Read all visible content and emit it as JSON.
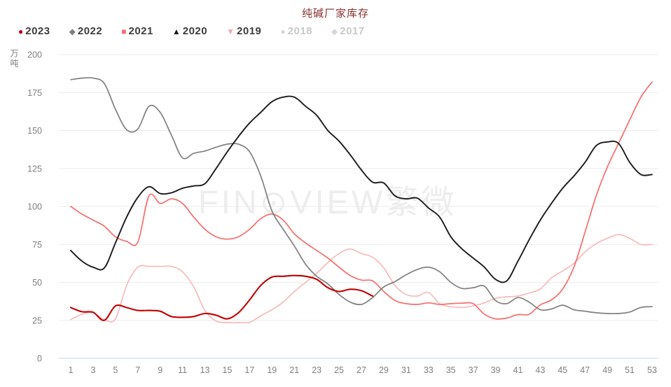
{
  "title": "纯碱厂家库存",
  "title_color": "#8b3030",
  "watermark": "FIN⊙VIEW繁微",
  "y_axis_unit": "万吨",
  "legend": {
    "active_text_color": "#3d3d3d",
    "inactive_text_color": "#c9c9c9",
    "items": [
      {
        "label": "2023",
        "marker": "circle",
        "color": "#c00000",
        "active": true
      },
      {
        "label": "2022",
        "marker": "diamond",
        "color": "#7f7f7f",
        "active": true
      },
      {
        "label": "2021",
        "marker": "square",
        "color": "#f96c6c",
        "active": true
      },
      {
        "label": "2020",
        "marker": "triangle-up",
        "color": "#1a1a1a",
        "active": true
      },
      {
        "label": "2019",
        "marker": "triangle-down",
        "color": "#f5a8a8",
        "active": true
      },
      {
        "label": "2018",
        "marker": "circle",
        "color": "#d6d6d6",
        "active": false
      },
      {
        "label": "2017",
        "marker": "diamond",
        "color": "#d6d6d6",
        "active": false
      }
    ]
  },
  "chart_data": {
    "type": "line",
    "xlabel": "",
    "ylabel": "万吨",
    "ylim": [
      0,
      200
    ],
    "y_ticks": [
      0,
      25,
      50,
      75,
      100,
      125,
      150,
      175,
      200
    ],
    "x_ticks": [
      1,
      3,
      5,
      7,
      9,
      11,
      13,
      15,
      17,
      19,
      21,
      23,
      25,
      27,
      29,
      31,
      33,
      35,
      37,
      39,
      41,
      43,
      45,
      47,
      49,
      51,
      53
    ],
    "x_weeks": 53,
    "grid_color": "#ebebeb",
    "zero_axis_color": "#c9d6ea",
    "tick_label_color": "#7f7f7f",
    "legend_position": "top-left",
    "series": [
      {
        "name": "2019",
        "color": "#f7baba",
        "width": 1.7,
        "values": [
          25.5,
          29,
          30,
          25.5,
          26,
          48,
          60,
          60.5,
          60.5,
          60.5,
          57,
          47,
          31.5,
          24.5,
          23.5,
          23.5,
          23.7,
          28,
          32,
          37,
          44,
          50,
          56,
          63,
          69,
          72,
          69,
          66.5,
          59.5,
          48,
          42,
          41,
          43.3,
          36,
          34,
          33.5,
          34.5,
          36.5,
          39.5,
          40.5,
          41,
          43,
          45.6,
          53,
          57.5,
          62.5,
          70,
          75.5,
          79,
          81.5,
          79,
          75,
          75
        ]
      },
      {
        "name": "2021",
        "color": "#f96c6c",
        "width": 1.7,
        "values": [
          100,
          95,
          91,
          87,
          80,
          77,
          76.5,
          107,
          102,
          105,
          102,
          93,
          85,
          80,
          78.5,
          80,
          85,
          92,
          95,
          91,
          82,
          76,
          71,
          66,
          60,
          54.5,
          51.5,
          51,
          44,
          38,
          36,
          35.5,
          36.5,
          35.5,
          36,
          36.3,
          36,
          29,
          26,
          26.5,
          28.8,
          29,
          35.2,
          38.5,
          45.6,
          60,
          83,
          107,
          126,
          141.5,
          157,
          172,
          182
        ]
      },
      {
        "name": "2022",
        "color": "#7f7f7f",
        "width": 1.7,
        "values": [
          183.5,
          184.5,
          184.5,
          181,
          164,
          150.5,
          151,
          166,
          162,
          147,
          132,
          135,
          136.5,
          139,
          141,
          141,
          136,
          120,
          97,
          85,
          74,
          62,
          54,
          49,
          42,
          37,
          35.5,
          40,
          47,
          50.5,
          55,
          58.5,
          60,
          57,
          50,
          46,
          46.5,
          47.5,
          38,
          36,
          40,
          37,
          32,
          32.5,
          35,
          32,
          31,
          30,
          29.5,
          29.5,
          30.5,
          33.5,
          34
        ]
      },
      {
        "name": "2020",
        "color": "#1a1a1a",
        "width": 1.9,
        "values": [
          71,
          64,
          60,
          59.5,
          76,
          93,
          106,
          113,
          108.5,
          109,
          112,
          113.5,
          115,
          125,
          136,
          146,
          155,
          162,
          169,
          172,
          172,
          166,
          160,
          150,
          143,
          134,
          124,
          116,
          115.5,
          107,
          105,
          105.5,
          99,
          93,
          80,
          72,
          66,
          60,
          52,
          51,
          64,
          78,
          91,
          102,
          112,
          120,
          129,
          140,
          142.5,
          141.5,
          129,
          121,
          121
        ]
      },
      {
        "name": "2023",
        "color": "#c00000",
        "width": 2.1,
        "values": [
          33.4,
          30.7,
          30.3,
          25,
          34.5,
          33.4,
          31.5,
          31.5,
          31,
          27.5,
          27,
          27.5,
          29.5,
          28.4,
          26,
          30,
          38.5,
          48,
          53.5,
          54,
          54.5,
          54,
          52,
          46.5,
          44,
          45.5,
          44.5,
          41,
          null,
          null,
          null,
          null,
          null,
          null,
          null,
          null,
          null,
          null,
          null,
          null,
          null,
          null,
          null,
          null,
          null,
          null,
          null,
          null,
          null,
          null,
          null,
          null,
          null
        ]
      }
    ]
  }
}
